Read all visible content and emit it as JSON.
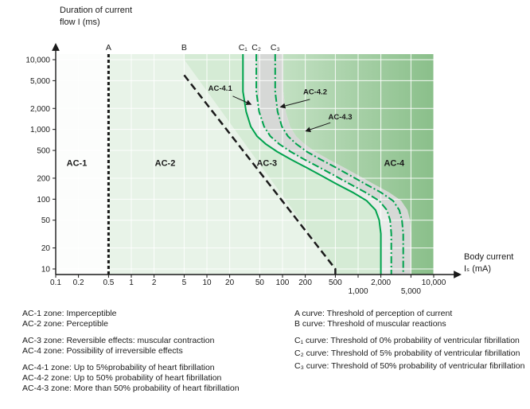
{
  "axes": {
    "y_title_line1": "Duration of current",
    "y_title_line2": "flow I (ms)",
    "x_title_line1": "Body current",
    "x_title_line2": "Iₛ (mA)"
  },
  "chart_data": {
    "type": "line",
    "grid": true,
    "band_shift_factor": 1.28,
    "x_axis": {
      "label": "Body current Iₛ (mA)",
      "scale": "log",
      "min": 0.1,
      "max": 10000,
      "ticks": [
        {
          "v": 0.1,
          "label": "0.1"
        },
        {
          "v": 0.2,
          "label": "0.2"
        },
        {
          "v": 0.5,
          "label": "0.5"
        },
        {
          "v": 1,
          "label": "1"
        },
        {
          "v": 2,
          "label": "2"
        },
        {
          "v": 5,
          "label": "5"
        },
        {
          "v": 10,
          "label": "10"
        },
        {
          "v": 20,
          "label": "20"
        },
        {
          "v": 50,
          "label": "50"
        },
        {
          "v": 100,
          "label": "100"
        },
        {
          "v": 200,
          "label": "200"
        },
        {
          "v": 500,
          "label": "500"
        },
        {
          "v": 1000,
          "label": "1,000",
          "row": 2
        },
        {
          "v": 2000,
          "label": "2,000"
        },
        {
          "v": 5000,
          "label": "5,000",
          "row": 2
        },
        {
          "v": 10000,
          "label": "10,000"
        }
      ]
    },
    "y_axis": {
      "label": "Duration of current flow I (ms)",
      "scale": "log",
      "min": 10,
      "max": 10000,
      "ticks": [
        {
          "v": 10,
          "label": "10"
        },
        {
          "v": 20,
          "label": "20"
        },
        {
          "v": 50,
          "label": "50"
        },
        {
          "v": 100,
          "label": "100"
        },
        {
          "v": 200,
          "label": "200"
        },
        {
          "v": 500,
          "label": "500"
        },
        {
          "v": 1000,
          "label": "1,000"
        },
        {
          "v": 2000,
          "label": "2,000"
        },
        {
          "v": 5000,
          "label": "5,000"
        },
        {
          "v": 10000,
          "label": "10,000"
        }
      ]
    },
    "curves": [
      {
        "id": "A",
        "label": "A",
        "color": "#1a1a1a",
        "width": 3,
        "dash": "4 3",
        "points": [
          [
            0.5,
            10000
          ],
          [
            0.5,
            10
          ]
        ]
      },
      {
        "id": "B",
        "label": "B",
        "color": "#1a1a1a",
        "width": 2.5,
        "dash": "9 5",
        "extend_top": false,
        "points": [
          [
            5,
            6000
          ],
          [
            500,
            10
          ]
        ],
        "fill_points": [
          [
            5,
            10000
          ],
          [
            500,
            10
          ]
        ]
      },
      {
        "id": "C1",
        "label": "C₁",
        "color": "#00a24d",
        "width": 2,
        "dash": null,
        "points": [
          [
            30,
            10000
          ],
          [
            30,
            3500
          ],
          [
            33,
            1800
          ],
          [
            38,
            1100
          ],
          [
            46,
            800
          ],
          [
            60,
            620
          ],
          [
            85,
            480
          ],
          [
            130,
            370
          ],
          [
            200,
            290
          ],
          [
            320,
            220
          ],
          [
            520,
            165
          ],
          [
            850,
            125
          ],
          [
            1300,
            95
          ],
          [
            1700,
            70
          ],
          [
            1900,
            50
          ],
          [
            2000,
            32
          ],
          [
            2000,
            10
          ]
        ]
      },
      {
        "id": "C2",
        "label": "C₂",
        "color": "#00a24d",
        "width": 2,
        "dash": "9 3 2 3",
        "points": [
          [
            45,
            10000
          ],
          [
            45,
            3500
          ],
          [
            49,
            1800
          ],
          [
            57,
            1100
          ],
          [
            69,
            800
          ],
          [
            90,
            620
          ],
          [
            128,
            480
          ],
          [
            195,
            370
          ],
          [
            300,
            290
          ],
          [
            480,
            220
          ],
          [
            780,
            165
          ],
          [
            1250,
            125
          ],
          [
            1900,
            95
          ],
          [
            2400,
            70
          ],
          [
            2650,
            50
          ],
          [
            2750,
            32
          ],
          [
            2750,
            10
          ]
        ]
      },
      {
        "id": "C3",
        "label": "C₃",
        "color": "#00a24d",
        "width": 2,
        "dash": "9 3 2 3",
        "points": [
          [
            80,
            10000
          ],
          [
            80,
            3500
          ],
          [
            86,
            1800
          ],
          [
            98,
            1100
          ],
          [
            118,
            800
          ],
          [
            152,
            620
          ],
          [
            210,
            480
          ],
          [
            320,
            370
          ],
          [
            490,
            290
          ],
          [
            780,
            220
          ],
          [
            1250,
            165
          ],
          [
            2000,
            125
          ],
          [
            2900,
            95
          ],
          [
            3500,
            70
          ],
          [
            3800,
            50
          ],
          [
            3950,
            32
          ],
          [
            3950,
            10
          ]
        ]
      }
    ],
    "zones": [
      {
        "name": "AC-1",
        "from": "left",
        "to": "A",
        "fill": "#fcfdfc",
        "label_at": [
          0.19,
          300
        ]
      },
      {
        "name": "AC-2",
        "from": "A",
        "to": "B",
        "fill": "#e8f3e8",
        "label_at": [
          2.8,
          300
        ]
      },
      {
        "name": "AC-3",
        "from": "B",
        "to": "C1",
        "fill": "#d5ebd5",
        "label_at": [
          62,
          300
        ]
      },
      {
        "name": "AC-4.1",
        "from": "C1",
        "to": "C2",
        "fill": "#e9ebe9",
        "small": true,
        "label_at": [
          15,
          3600
        ],
        "arrow_from": [
          22,
          3000
        ],
        "arrow_to": [
          38,
          2300
        ]
      },
      {
        "name": "AC-4.2",
        "from": "C2",
        "to": "C3band",
        "fill": "#d6d8d6",
        "small": true,
        "label_at": [
          270,
          3200
        ],
        "arrow_from": [
          230,
          2700
        ],
        "arrow_to": [
          95,
          2100
        ]
      },
      {
        "name": "AC-4.3",
        "from": null,
        "to": null,
        "fill": null,
        "small": true,
        "label_at": [
          580,
          1400
        ],
        "arrow_from": [
          430,
          1250
        ],
        "arrow_to": [
          205,
          950
        ]
      },
      {
        "name": "AC-4",
        "from": "C3band",
        "to": "right",
        "fill": [
          "#c2e0c2",
          "#8abf8a"
        ],
        "label_at": [
          3000,
          300
        ]
      }
    ]
  },
  "legend": {
    "left_groups": [
      [
        "AC-1 zone: Imperceptible",
        "AC-2 zone: Perceptible"
      ],
      [
        "AC-3 zone: Reversible effects: muscular contraction",
        "AC-4 zone: Possibility of irreversible effects"
      ],
      [
        "AC-4-1 zone: Up to 5%probability of heart fibrillation",
        "AC-4-2 zone: Up to 50% probability of heart fibrillation",
        "AC-4-3 zone: More than 50% probability of heart fibrillation"
      ]
    ],
    "right_groups": [
      [
        "A curve: Threshold of perception of current",
        "B curve: Threshold of muscular reactions"
      ],
      [
        "C₁ curve: Threshold of 0% probability of ventricular fibrillation",
        "C₂ curve: Threshold of 5% probability of ventricular fibrillation",
        "C₃ curve: Threshold of 50% probability of ventricular fibrillation"
      ]
    ]
  }
}
